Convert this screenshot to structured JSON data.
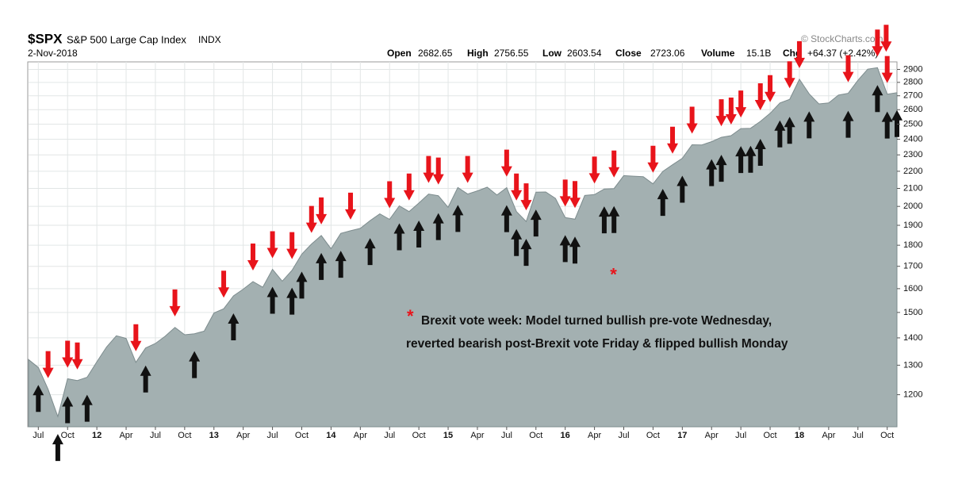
{
  "chart_data": {
    "type": "area",
    "title": "$SPX",
    "subtitle": "S&P 500 Large Cap Index",
    "exchange": "INDX",
    "date": "2-Nov-2018",
    "quote": [
      {
        "label": "Open",
        "value": 2682.65
      },
      {
        "label": "High",
        "value": 2756.55
      },
      {
        "label": "Low",
        "value": 2603.54
      },
      {
        "label": "Close",
        "value": 2723.06
      },
      {
        "label": "Volume",
        "value": "15.1B"
      },
      {
        "label": "Chg",
        "value": "+64.37 (+2.42%)"
      }
    ],
    "source": "© StockCharts.com",
    "annotation_marker": "*",
    "annotation": [
      "Brexit vote week: Model turned bullish pre-vote Wednesday,",
      "reverted bearish post-Brexit vote Friday & flipped bullish Monday"
    ],
    "annotation_marker_x": "2016-06",
    "color": "#a3b0b1",
    "line_color": "#7d8c8e",
    "log_scale": true,
    "grid": true,
    "x": [
      "2011-06",
      "2011-07",
      "2011-08",
      "2011-09",
      "2011-10",
      "2011-11",
      "2011-12",
      "2012-01",
      "2012-02",
      "2012-03",
      "2012-04",
      "2012-05",
      "2012-06",
      "2012-07",
      "2012-08",
      "2012-09",
      "2012-10",
      "2012-11",
      "2012-12",
      "2013-01",
      "2013-02",
      "2013-03",
      "2013-04",
      "2013-05",
      "2013-06",
      "2013-07",
      "2013-08",
      "2013-09",
      "2013-10",
      "2013-11",
      "2013-12",
      "2014-01",
      "2014-02",
      "2014-03",
      "2014-04",
      "2014-05",
      "2014-06",
      "2014-07",
      "2014-08",
      "2014-09",
      "2014-10",
      "2014-11",
      "2014-12",
      "2015-01",
      "2015-02",
      "2015-03",
      "2015-04",
      "2015-05",
      "2015-06",
      "2015-07",
      "2015-08",
      "2015-09",
      "2015-10",
      "2015-11",
      "2015-12",
      "2016-01",
      "2016-02",
      "2016-03",
      "2016-04",
      "2016-05",
      "2016-06",
      "2016-07",
      "2016-08",
      "2016-09",
      "2016-10",
      "2016-11",
      "2016-12",
      "2017-01",
      "2017-02",
      "2017-03",
      "2017-04",
      "2017-05",
      "2017-06",
      "2017-07",
      "2017-08",
      "2017-09",
      "2017-10",
      "2017-11",
      "2017-12",
      "2018-01",
      "2018-02",
      "2018-03",
      "2018-04",
      "2018-05",
      "2018-06",
      "2018-07",
      "2018-08",
      "2018-09",
      "2018-10",
      "2018-11"
    ],
    "values": [
      1320,
      1292,
      1218,
      1131,
      1253,
      1247,
      1258,
      1312,
      1366,
      1408,
      1398,
      1310,
      1362,
      1379,
      1406,
      1440,
      1412,
      1416,
      1426,
      1498,
      1515,
      1569,
      1598,
      1631,
      1606,
      1686,
      1633,
      1682,
      1757,
      1806,
      1848,
      1783,
      1859,
      1872,
      1884,
      1924,
      1960,
      1931,
      2003,
      1972,
      2018,
      2068,
      2059,
      1995,
      2105,
      2068,
      2086,
      2107,
      2063,
      2104,
      1972,
      1920,
      2079,
      2080,
      2044,
      1940,
      1932,
      2060,
      2065,
      2097,
      2099,
      2174,
      2171,
      2168,
      2126,
      2199,
      2239,
      2279,
      2364,
      2363,
      2384,
      2412,
      2423,
      2470,
      2472,
      2519,
      2575,
      2648,
      2674,
      2824,
      2714,
      2641,
      2648,
      2705,
      2718,
      2816,
      2902,
      2914,
      2712,
      2723
    ],
    "xlim": [
      "2011-06",
      "2018-11"
    ],
    "xticks": [
      {
        "value": "2011-07",
        "label": "Jul"
      },
      {
        "value": "2011-10",
        "label": "Oct"
      },
      {
        "value": "2012-01",
        "label": "12"
      },
      {
        "value": "2012-04",
        "label": "Apr"
      },
      {
        "value": "2012-07",
        "label": "Jul"
      },
      {
        "value": "2012-10",
        "label": "Oct"
      },
      {
        "value": "2013-01",
        "label": "13"
      },
      {
        "value": "2013-04",
        "label": "Apr"
      },
      {
        "value": "2013-07",
        "label": "Jul"
      },
      {
        "value": "2013-10",
        "label": "Oct"
      },
      {
        "value": "2014-01",
        "label": "14"
      },
      {
        "value": "2014-04",
        "label": "Apr"
      },
      {
        "value": "2014-07",
        "label": "Jul"
      },
      {
        "value": "2014-10",
        "label": "Oct"
      },
      {
        "value": "2015-01",
        "label": "15"
      },
      {
        "value": "2015-04",
        "label": "Apr"
      },
      {
        "value": "2015-07",
        "label": "Jul"
      },
      {
        "value": "2015-10",
        "label": "Oct"
      },
      {
        "value": "2016-01",
        "label": "16"
      },
      {
        "value": "2016-04",
        "label": "Apr"
      },
      {
        "value": "2016-07",
        "label": "Jul"
      },
      {
        "value": "2016-10",
        "label": "Oct"
      },
      {
        "value": "2017-01",
        "label": "17"
      },
      {
        "value": "2017-04",
        "label": "Apr"
      },
      {
        "value": "2017-07",
        "label": "Jul"
      },
      {
        "value": "2017-10",
        "label": "Oct"
      },
      {
        "value": "2018-01",
        "label": "18"
      },
      {
        "value": "2018-04",
        "label": "Apr"
      },
      {
        "value": "2018-07",
        "label": "Jul"
      },
      {
        "value": "2018-10",
        "label": "Oct"
      }
    ],
    "ylim": [
      1100,
      2960
    ],
    "yticks": [
      1200,
      1300,
      1400,
      1500,
      1600,
      1700,
      1800,
      1900,
      2000,
      2100,
      2200,
      2300,
      2400,
      2500,
      2600,
      2700,
      2800,
      2900
    ],
    "sell_color": "#e8141b",
    "buy_color": "#111111",
    "sell_signals": [
      "2011-08",
      "2011-10",
      "2011-11",
      "2012-05",
      "2012-09",
      "2013-02",
      "2013-05",
      "2013-07",
      "2013-09",
      "2013-11",
      "2013-12",
      "2014-03",
      "2014-07",
      "2014-09",
      "2014-11",
      "2014-12",
      "2015-03",
      "2015-07",
      "2015-08",
      "2015-09",
      "2016-01",
      "2016-02",
      "2016-04",
      "2016-06",
      "2016-10",
      "2016-12",
      "2017-02",
      "2017-05",
      "2017-06",
      "2017-07",
      "2017-09",
      "2017-10",
      "2017-12",
      "2018-01",
      "2018-06",
      "2018-09",
      "2018-09",
      "2018-10"
    ],
    "buy_signals": [
      "2011-07",
      "2011-09",
      "2011-10",
      "2011-12",
      "2012-06",
      "2012-11",
      "2013-03",
      "2013-07",
      "2013-09",
      "2013-10",
      "2013-12",
      "2014-02",
      "2014-05",
      "2014-08",
      "2014-10",
      "2014-12",
      "2015-02",
      "2015-07",
      "2015-08",
      "2015-09",
      "2015-10",
      "2016-01",
      "2016-02",
      "2016-05",
      "2016-06",
      "2016-11",
      "2017-01",
      "2017-04",
      "2017-05",
      "2017-07",
      "2017-08",
      "2017-09",
      "2017-11",
      "2017-12",
      "2018-02",
      "2018-06",
      "2018-09",
      "2018-10",
      "2018-11"
    ]
  }
}
